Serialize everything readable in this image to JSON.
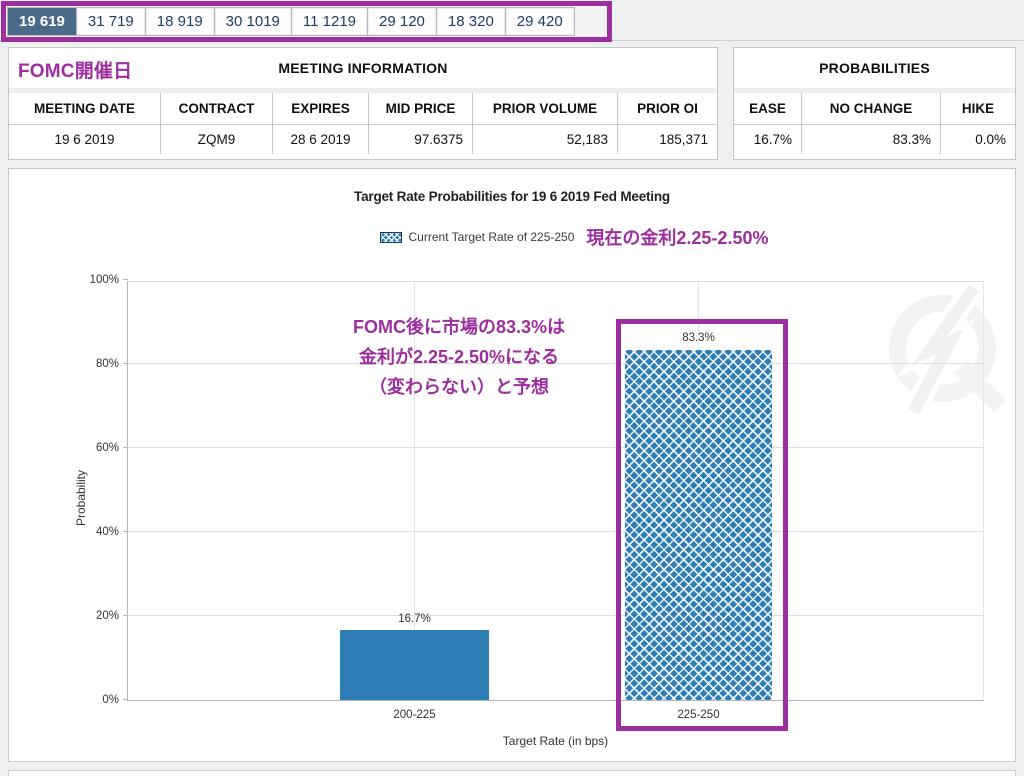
{
  "accent_color": "#9c2e9e",
  "tabs": {
    "items": [
      {
        "label": "19 619",
        "selected": true
      },
      {
        "label": "31 719",
        "selected": false
      },
      {
        "label": "18 919",
        "selected": false
      },
      {
        "label": "30 1019",
        "selected": false
      },
      {
        "label": "11 1219",
        "selected": false
      },
      {
        "label": "29 120",
        "selected": false
      },
      {
        "label": "18 320",
        "selected": false
      },
      {
        "label": "29 420",
        "selected": false
      }
    ]
  },
  "annotations": {
    "fomc_date_label": "FOMC開催日",
    "current_rate_note": "現在の金利2.25-2.50%",
    "forecast_note_lines": [
      "FOMC後に市場の83.3%は",
      "金利が2.25-2.50%になる",
      "（変わらない）と予想"
    ]
  },
  "meeting_information": {
    "title": "MEETING INFORMATION",
    "columns": [
      "MEETING DATE",
      "CONTRACT",
      "EXPIRES",
      "MID PRICE",
      "PRIOR VOLUME",
      "PRIOR OI"
    ],
    "row": [
      "19 6 2019",
      "ZQM9",
      "28 6 2019",
      "97.6375",
      "52,183",
      "185,371"
    ]
  },
  "probabilities": {
    "title": "PROBABILITIES",
    "columns": [
      "EASE",
      "NO CHANGE",
      "HIKE"
    ],
    "row": [
      "16.7%",
      "83.3%",
      "0.0%"
    ]
  },
  "chart_data": {
    "type": "bar",
    "title": "Target Rate Probabilities for 19 6 2019 Fed Meeting",
    "legend": {
      "label": "Current Target Rate of 225-250",
      "position": "top-center",
      "swatch": "blue-crosshatch"
    },
    "categories": [
      "200-225",
      "225-250"
    ],
    "values": [
      16.7,
      83.3
    ],
    "value_labels": [
      "16.7%",
      "83.3%"
    ],
    "current_target_rate_category": "225-250",
    "xlabel": "Target Rate (in bps)",
    "ylabel": "Probability",
    "ylim": [
      0,
      100
    ],
    "yticks": [
      "0%",
      "20%",
      "40%",
      "60%",
      "80%",
      "100%"
    ],
    "grid": true,
    "bar_color": "#2e7eb5",
    "watermark": "quikstrike-q-logo"
  }
}
